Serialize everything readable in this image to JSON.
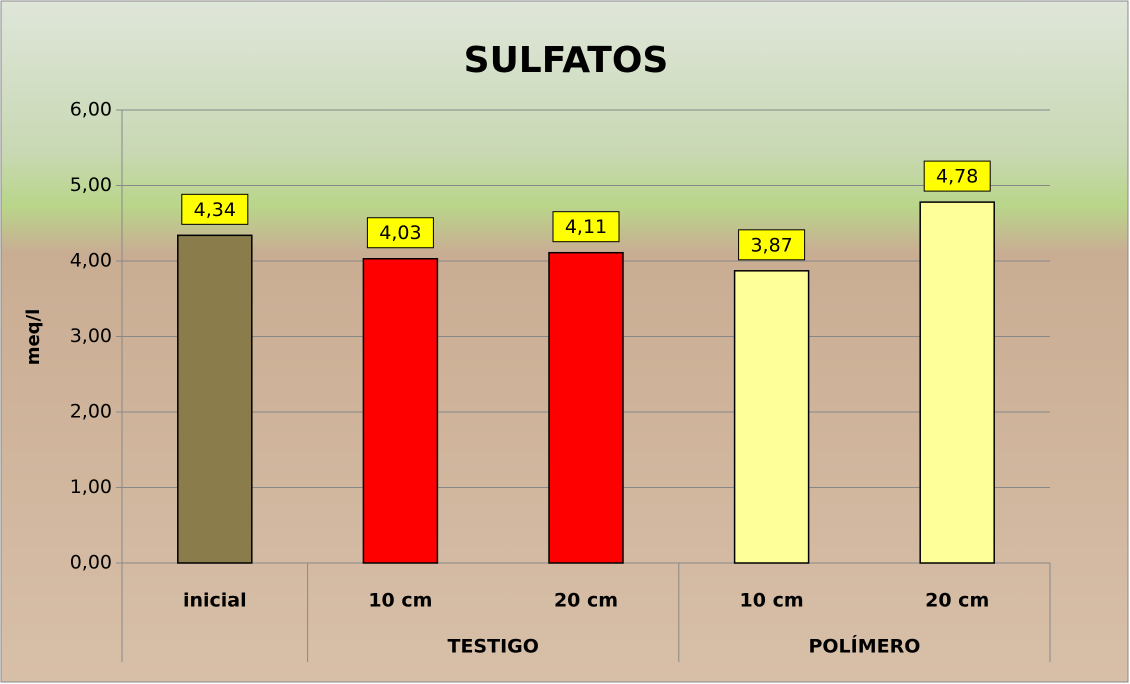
{
  "chart_data": {
    "type": "bar",
    "title": "SULFATOS",
    "y_label": "meq/l",
    "categories": [
      "inicial",
      "10 cm",
      "20 cm",
      "10 cm",
      "20 cm"
    ],
    "group_labels": [
      null,
      "TESTIGO",
      "TESTIGO",
      "POLÍMERO",
      "POLÍMERO"
    ],
    "values": [
      4.34,
      4.03,
      4.11,
      3.87,
      4.78
    ],
    "value_labels": [
      "4,34",
      "4,03",
      "4,11",
      "3,87",
      "4,78"
    ],
    "colors": [
      "#8b7d4b",
      "#ff0000",
      "#ff0000",
      "#ffff99",
      "#ffff99"
    ],
    "ylim": [
      0,
      6
    ],
    "yticks": [
      {
        "value": 0,
        "label": "0,00"
      },
      {
        "value": 1,
        "label": "1,00"
      },
      {
        "value": 2,
        "label": "2,00"
      },
      {
        "value": 3,
        "label": "3,00"
      },
      {
        "value": 4,
        "label": "4,00"
      },
      {
        "value": 5,
        "label": "5,00"
      },
      {
        "value": 6,
        "label": "6,00"
      }
    ],
    "grid": true
  }
}
